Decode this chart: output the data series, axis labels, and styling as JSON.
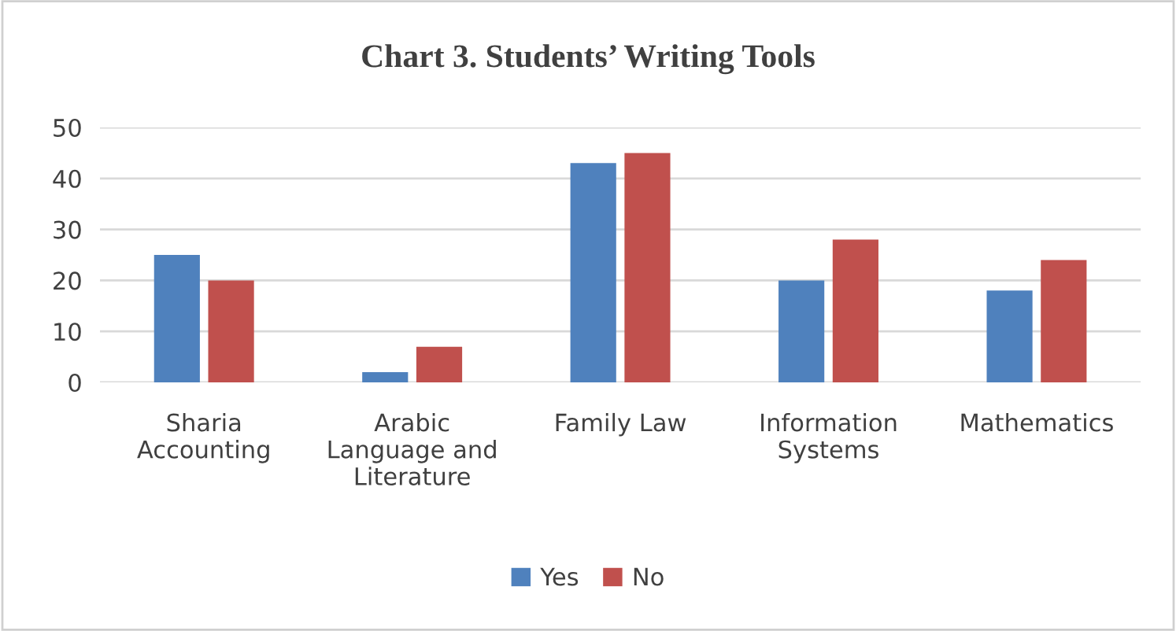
{
  "chart_data": {
    "type": "bar",
    "title": "Chart 3. Students’ Writing Tools",
    "categories": [
      "Sharia\nAccounting",
      "Arabic\nLanguage and\nLiterature",
      "Family Law",
      "Information\nSystems",
      "Mathematics"
    ],
    "series": [
      {
        "name": "Yes",
        "color": "#4f81bd",
        "values": [
          25,
          2,
          43,
          20,
          18
        ]
      },
      {
        "name": "No",
        "color": "#c0504d",
        "values": [
          20,
          7,
          45,
          28,
          24
        ]
      }
    ],
    "ylim": [
      0,
      50
    ],
    "yticks": [
      0,
      10,
      20,
      30,
      40,
      50
    ],
    "grid": "y",
    "legend": "bottom"
  }
}
